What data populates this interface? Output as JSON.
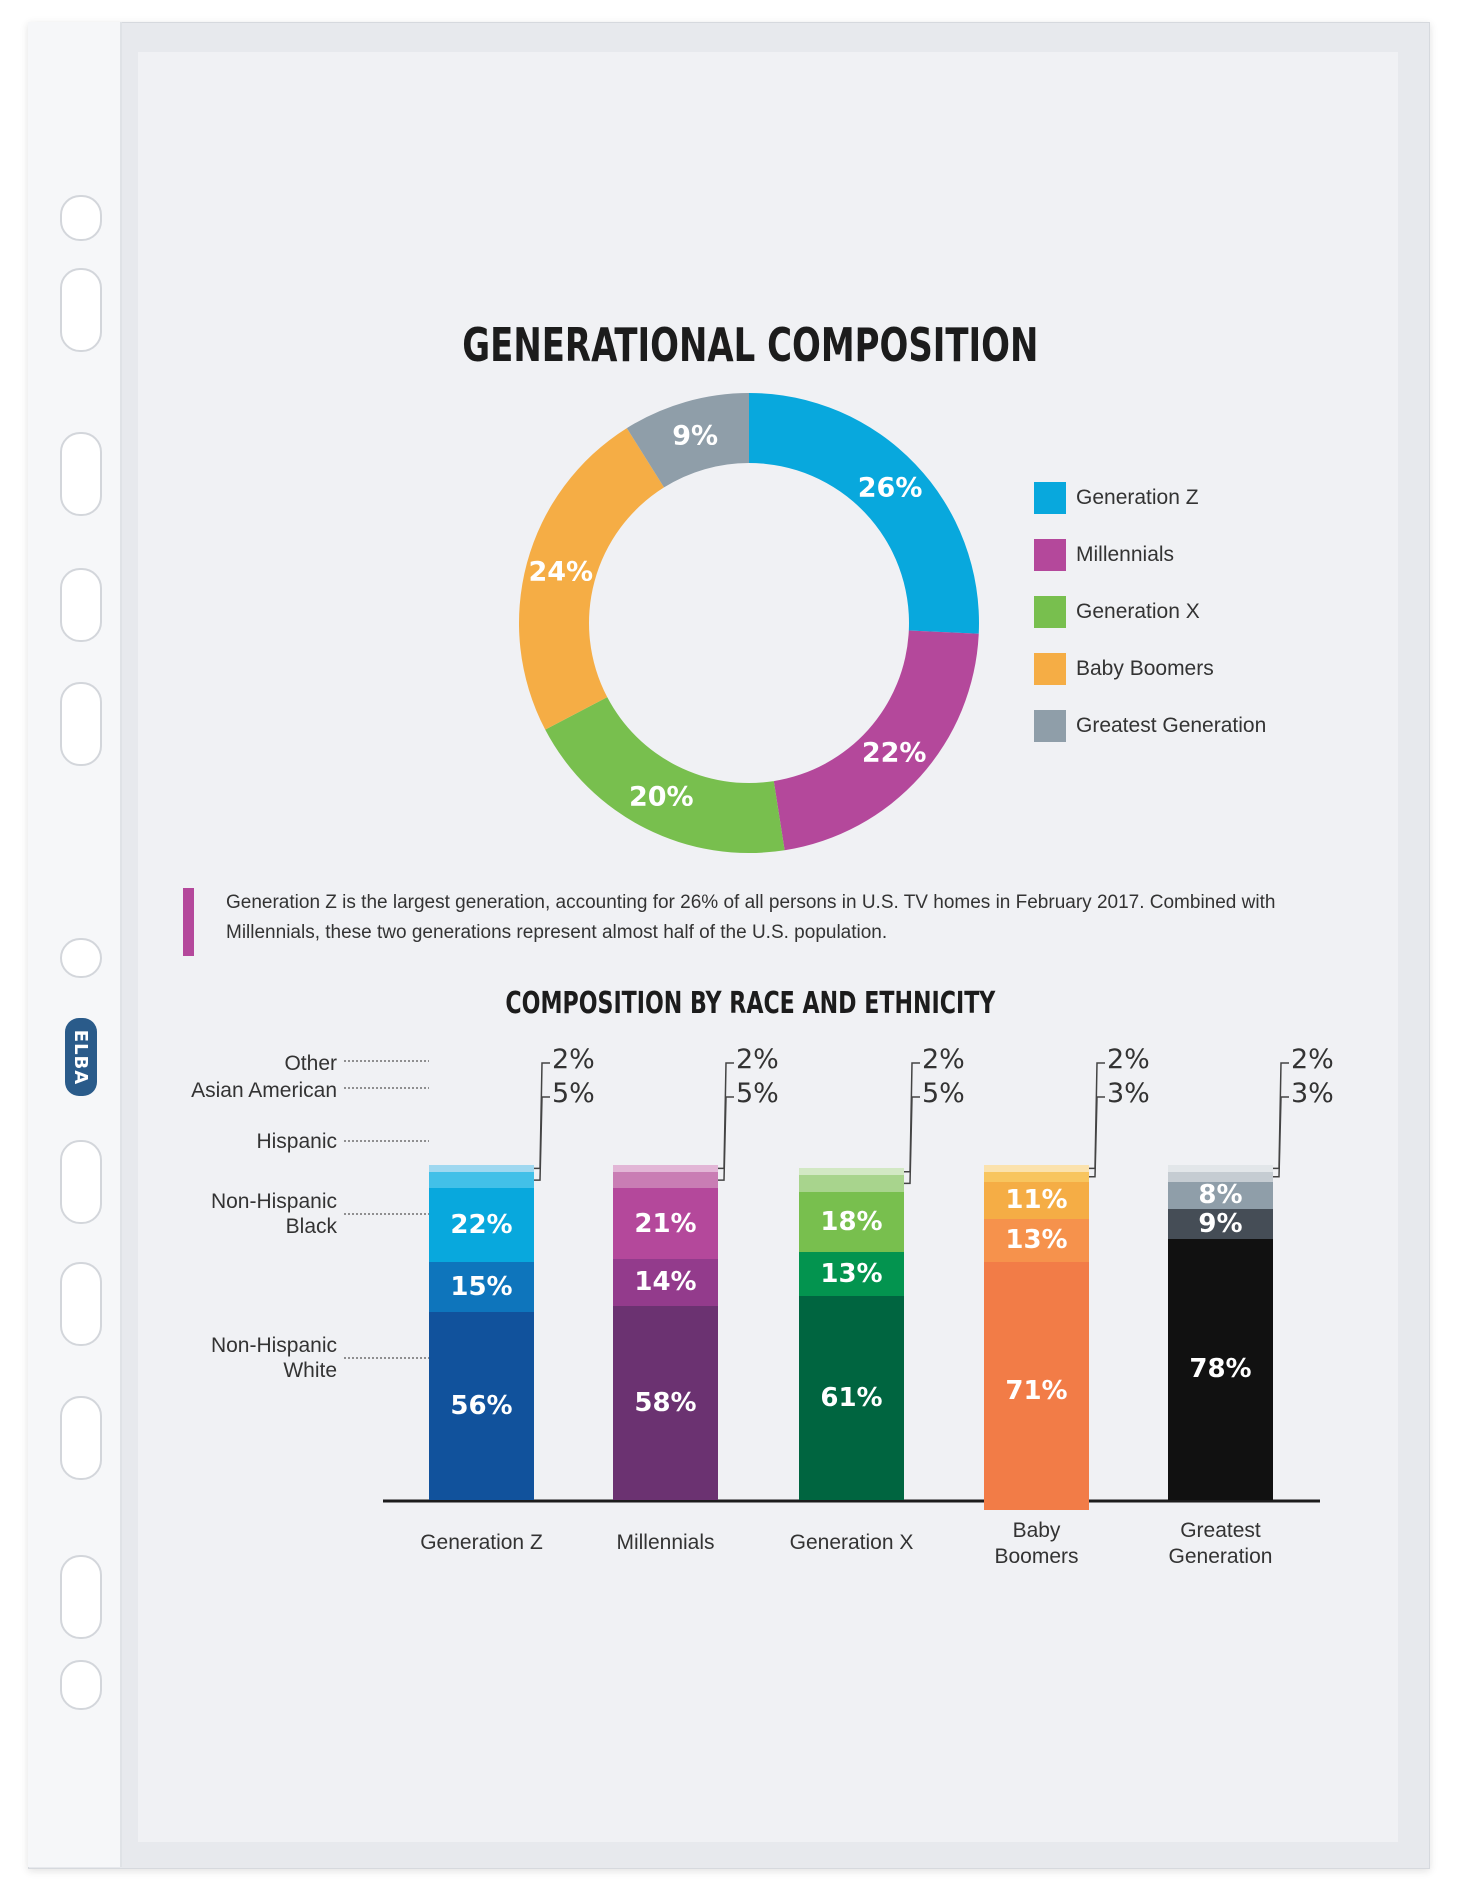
{
  "brand": "ELBA",
  "title": "GENERATIONAL COMPOSITION",
  "subtitle": "COMPOSITION BY RACE AND ETHNICITY",
  "note": "Generation Z is the largest generation, accounting for 26% of all persons in U.S. TV homes in February 2017. Combined with Millennials, these two generations represent almost half of the U.S. population.",
  "colors": {
    "accent": "#b4489b",
    "generation_z": "#08a8dd",
    "millennials": "#b4489b",
    "generation_x": "#78bf4e",
    "baby_boomers": "#f5ad45",
    "greatest_generation": "#8f9ea9"
  },
  "legend": [
    {
      "label": "Generation Z",
      "color": "#08a8dd"
    },
    {
      "label": "Millennials",
      "color": "#b4489b"
    },
    {
      "label": "Generation X",
      "color": "#78bf4e"
    },
    {
      "label": "Baby Boomers",
      "color": "#f5ad45"
    },
    {
      "label": "Greatest Generation",
      "color": "#8f9ea9"
    }
  ],
  "race_labels": {
    "other": "Other",
    "asian": "Asian American",
    "hispanic": "Hispanic",
    "black": "Non-Hispanic\nBlack",
    "white": "Non-Hispanic\nWhite"
  },
  "chart_data": [
    {
      "type": "pie",
      "title": "GENERATIONAL COMPOSITION",
      "categories": [
        "Generation Z",
        "Millennials",
        "Generation X",
        "Baby Boomers",
        "Greatest Generation"
      ],
      "values": [
        26,
        22,
        20,
        24,
        9
      ],
      "labels": [
        "26%",
        "22%",
        "20%",
        "24%",
        "9%"
      ],
      "colors": [
        "#08a8dd",
        "#b4489b",
        "#78bf4e",
        "#f5ad45",
        "#8f9ea9"
      ],
      "legend": "right"
    },
    {
      "type": "bar",
      "stacked": true,
      "title": "COMPOSITION BY RACE AND ETHNICITY",
      "categories": [
        "Generation Z",
        "Millennials",
        "Generation X",
        "Baby\nBoomers",
        "Greatest\nGeneration"
      ],
      "series": [
        {
          "name": "Non-Hispanic White",
          "values": [
            56,
            58,
            61,
            71,
            78
          ],
          "labels": [
            "56%",
            "58%",
            "61%",
            "71%",
            "78%"
          ]
        },
        {
          "name": "Non-Hispanic Black",
          "values": [
            15,
            14,
            13,
            13,
            9
          ],
          "labels": [
            "15%",
            "14%",
            "13%",
            "13%",
            "9%"
          ]
        },
        {
          "name": "Hispanic",
          "values": [
            22,
            21,
            18,
            11,
            8
          ],
          "labels": [
            "22%",
            "21%",
            "18%",
            "11%",
            "8%"
          ]
        },
        {
          "name": "Asian American",
          "values": [
            5,
            5,
            5,
            3,
            3
          ],
          "labels": [
            "5%",
            "5%",
            "5%",
            "3%",
            "3%"
          ]
        },
        {
          "name": "Other",
          "values": [
            2,
            2,
            2,
            2,
            2
          ],
          "labels": [
            "2%",
            "2%",
            "2%",
            "2%",
            "2%"
          ]
        }
      ],
      "bar_colors": [
        [
          "#11529c",
          "#0e75bc",
          "#08a8dd",
          "#42c0e8",
          "#9fd8f0"
        ],
        [
          "#6b3271",
          "#933b8c",
          "#b4489b",
          "#c97db4",
          "#e2b6d6"
        ],
        [
          "#006540",
          "#03944f",
          "#78bf4e",
          "#a8d48d",
          "#d2e8c4"
        ],
        [
          "#f27c47",
          "#f6924c",
          "#f5ad45",
          "#f8c55e",
          "#fbe2ad"
        ],
        [
          "#111111",
          "#454d56",
          "#8f9ea9",
          "#c5ccd2",
          "#e2e6e9"
        ]
      ]
    }
  ]
}
